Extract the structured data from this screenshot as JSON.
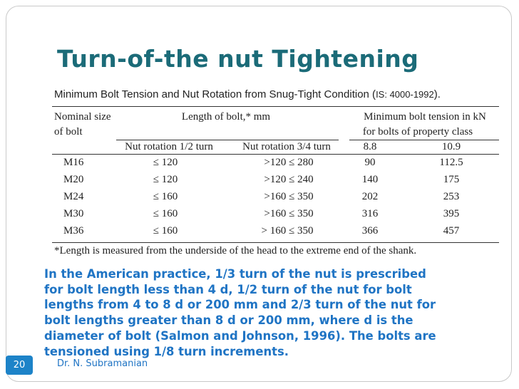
{
  "slide": {
    "title": "Turn-of-the nut Tightening",
    "page_number": "20",
    "author": "Dr. N. Subramanian"
  },
  "table": {
    "caption_main": "Minimum Bolt Tension and Nut Rotation from Snug-Tight Condition (",
    "caption_std": "IS: 4000-1992",
    "caption_end": ").",
    "header": {
      "nominal_line1": "Nominal size",
      "nominal_line2": "of bolt",
      "length_group": "Length of bolt,* mm",
      "tension_line1": "Minimum bolt tension in kN",
      "tension_line2": "for bolts of property class",
      "rot_half": "Nut rotation 1/2 turn",
      "rot_three_quarter": "Nut rotation 3/4 turn",
      "class_88": "8.8",
      "class_109": "10.9"
    },
    "rows": [
      {
        "size": "M16",
        "half": "≤ 120",
        "three_quarter": ">120 ≤ 280",
        "c88": "90",
        "c109": "112.5"
      },
      {
        "size": "M20",
        "half": "≤ 120",
        "three_quarter": ">120 ≤ 240",
        "c88": "140",
        "c109": "175"
      },
      {
        "size": "M24",
        "half": "≤ 160",
        "three_quarter": ">160 ≤ 350",
        "c88": "202",
        "c109": "253"
      },
      {
        "size": "M30",
        "half": "≤ 160",
        "three_quarter": ">160 ≤ 350",
        "c88": "316",
        "c109": "395"
      },
      {
        "size": "M36",
        "half": "≤ 160",
        "three_quarter": "> 160 ≤ 350",
        "c88": "366",
        "c109": "457"
      }
    ],
    "footnote": "*Length is measured from the underside of the head to the extreme end of the shank."
  },
  "paragraph": {
    "lines": [
      "In the American practice, 1/3 turn of the nut is prescribed",
      "for bolt length less than 4 d, 1/2 turn of the nut for bolt",
      "lengths from 4 to 8 d or 200 mm and 2/3 turn of the nut for",
      "bolt lengths greater than 8 d or 200 mm, where d is the",
      "diameter of bolt (Salmon and Johnson, 1996). The bolts are",
      "tensioned using 1/8 turn increments."
    ]
  },
  "colors": {
    "title": "#1b6b78",
    "body_text": "#1f74c4",
    "page_badge": "#1d83c8"
  }
}
